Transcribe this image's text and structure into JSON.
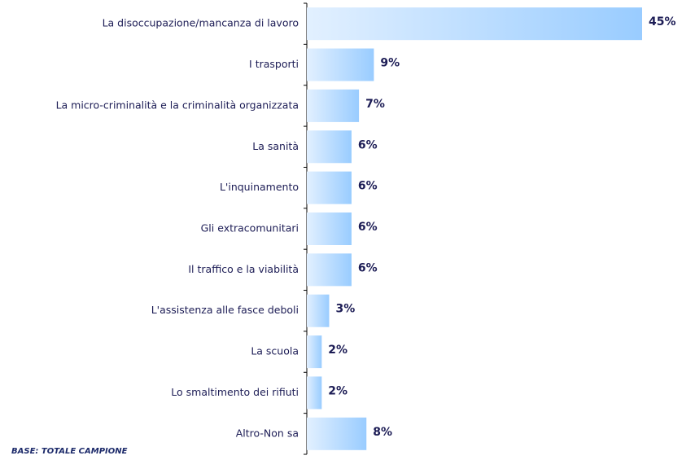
{
  "chart_data": {
    "type": "bar",
    "orientation": "horizontal",
    "categories": [
      "La disoccupazione/mancanza di lavoro",
      "I trasporti",
      "La micro-criminalità e la criminalità organizzata",
      "La sanità",
      "L'inquinamento",
      "Gli extracomunitari",
      "Il traffico e la viabilità",
      "L'assistenza alle fasce deboli",
      "La scuola",
      "Lo smaltimento dei rifiuti",
      "Altro-Non sa"
    ],
    "values": [
      45,
      9,
      7,
      6,
      6,
      6,
      6,
      3,
      2,
      2,
      8
    ],
    "value_labels": [
      "45%",
      "9%",
      "7%",
      "6%",
      "6%",
      "6%",
      "6%",
      "3%",
      "2%",
      "2%",
      "8%"
    ],
    "color": "#99ccff",
    "xlim": [
      0,
      45
    ],
    "footnote": "BASE: TOTALE CAMPIONE"
  }
}
